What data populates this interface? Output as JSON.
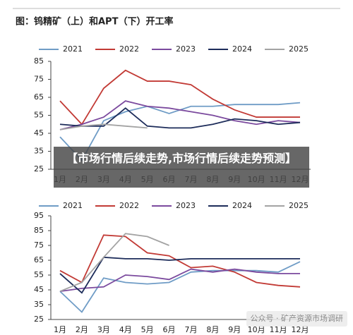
{
  "header": {
    "title": "图：钨精矿（上）和APT（下）开工率"
  },
  "banner": {
    "text": "【市场行情后续走势,市场行情后续走势预测】"
  },
  "watermark": {
    "text": "公众号 · 矿产资源市场调研"
  },
  "chart_data": [
    {
      "type": "line",
      "categories": [
        "1月",
        "2月",
        "3月",
        "4月",
        "5月",
        "6月",
        "7月",
        "8月",
        "9月",
        "10月",
        "11月",
        "12月"
      ],
      "ylim": [
        25,
        85
      ],
      "yticks": [
        25,
        35,
        45,
        55,
        65,
        75,
        85
      ],
      "grid": false,
      "series": [
        {
          "name": "2021",
          "color": "#6f9cc6",
          "values": [
            43,
            30,
            52,
            57,
            60,
            56,
            60,
            60,
            61,
            61,
            61,
            62
          ]
        },
        {
          "name": "2022",
          "color": "#c23a35",
          "values": [
            63,
            50,
            70,
            80,
            74,
            74,
            72,
            64,
            58,
            54,
            54,
            54
          ]
        },
        {
          "name": "2023",
          "color": "#7b4a9e",
          "values": [
            47,
            50,
            54,
            63,
            60,
            59,
            57,
            55,
            52,
            50,
            52,
            51
          ]
        },
        {
          "name": "2024",
          "color": "#1d2c5a",
          "values": [
            50,
            49,
            49,
            59,
            49,
            48,
            48,
            50,
            53,
            52,
            50,
            51
          ]
        },
        {
          "name": "2025",
          "color": "#a3a3a3",
          "values": [
            47,
            49,
            50,
            49,
            48,
            null,
            null,
            null,
            null,
            null,
            null,
            null
          ]
        }
      ]
    },
    {
      "type": "line",
      "categories": [
        "1月",
        "2月",
        "3月",
        "4月",
        "5月",
        "6月",
        "7月",
        "8月",
        "9月",
        "10月",
        "11月",
        "12月"
      ],
      "ylim": [
        25,
        95
      ],
      "yticks": [
        25,
        35,
        45,
        55,
        65,
        75,
        85,
        95
      ],
      "grid": false,
      "series": [
        {
          "name": "2021",
          "color": "#6f9cc6",
          "values": [
            44,
            30,
            53,
            50,
            49,
            50,
            57,
            58,
            58,
            58,
            57,
            64
          ]
        },
        {
          "name": "2022",
          "color": "#c23a35",
          "values": [
            58,
            50,
            82,
            81,
            70,
            68,
            60,
            61,
            57,
            50,
            48,
            47
          ]
        },
        {
          "name": "2023",
          "color": "#7b4a9e",
          "values": [
            44,
            46,
            47,
            55,
            54,
            52,
            59,
            57,
            59,
            57,
            56,
            56
          ]
        },
        {
          "name": "2024",
          "color": "#1d2c5a",
          "values": [
            56,
            43,
            67,
            66,
            66,
            65,
            66,
            66,
            66,
            66,
            66,
            66
          ]
        },
        {
          "name": "2025",
          "color": "#a3a3a3",
          "values": [
            44,
            50,
            67,
            83,
            81,
            75,
            null,
            null,
            null,
            null,
            null,
            null
          ]
        }
      ]
    }
  ]
}
